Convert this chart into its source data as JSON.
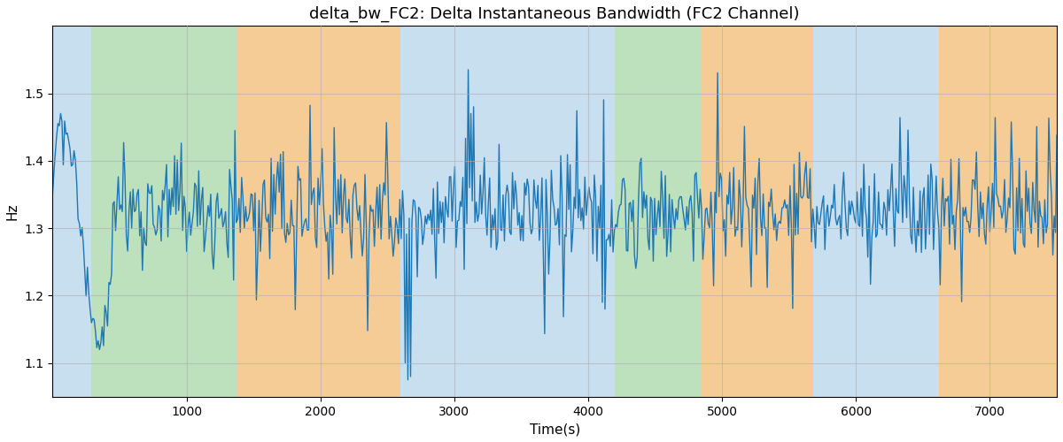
{
  "title": "delta_bw_FC2: Delta Instantaneous Bandwidth (FC2 Channel)",
  "xlabel": "Time(s)",
  "ylabel": "Hz",
  "xlim": [
    0,
    7500
  ],
  "ylim": [
    1.05,
    1.6
  ],
  "yticks": [
    1.1,
    1.2,
    1.3,
    1.4,
    1.5
  ],
  "xticks": [
    1000,
    2000,
    3000,
    4000,
    5000,
    6000,
    7000
  ],
  "bg_regions": [
    {
      "xmin": 0,
      "xmax": 290,
      "color": "#c8dff0"
    },
    {
      "xmin": 290,
      "xmax": 1380,
      "color": "#bde0bd"
    },
    {
      "xmin": 1380,
      "xmax": 2600,
      "color": "#f5cc96"
    },
    {
      "xmin": 2600,
      "xmax": 4060,
      "color": "#c8dff0"
    },
    {
      "xmin": 4060,
      "xmax": 4200,
      "color": "#c8dff0"
    },
    {
      "xmin": 4200,
      "xmax": 4850,
      "color": "#bde0bd"
    },
    {
      "xmin": 4850,
      "xmax": 5680,
      "color": "#f5cc96"
    },
    {
      "xmin": 5680,
      "xmax": 6620,
      "color": "#c8dff0"
    },
    {
      "xmin": 6620,
      "xmax": 7500,
      "color": "#f5cc96"
    }
  ],
  "line_color": "#1f77b4",
  "line_width": 1.0,
  "seed": 12345,
  "n_points": 750,
  "title_fontsize": 13,
  "tick_fontsize": 10,
  "label_fontsize": 11,
  "grid_color": "#b0b0b0",
  "grid_alpha": 0.6,
  "grid_linewidth": 0.8
}
